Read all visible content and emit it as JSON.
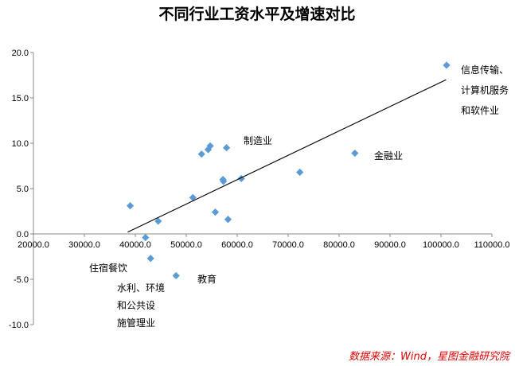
{
  "chart_data": {
    "type": "scatter",
    "title": "不同行业工资水平及增速对比",
    "xlabel": "",
    "ylabel": "",
    "xlim": [
      20000,
      110000
    ],
    "ylim": [
      -10,
      20
    ],
    "x_ticks": [
      "20000.0",
      "30000.0",
      "40000.0",
      "50000.0",
      "60000.0",
      "70000.0",
      "80000.0",
      "90000.0",
      "100000.0",
      "110000.0"
    ],
    "y_ticks": [
      "20.0",
      "15.0",
      "10.0",
      "5.0",
      "0.0",
      "-5.0",
      "-10.0"
    ],
    "marker_color": "#5b9bd5",
    "points": [
      {
        "x": 39000,
        "y": 3.1
      },
      {
        "x": 42000,
        "y": -0.4
      },
      {
        "x": 43000,
        "y": -2.7
      },
      {
        "x": 44500,
        "y": 1.4
      },
      {
        "x": 48000,
        "y": -4.6
      },
      {
        "x": 51300,
        "y": 4.0
      },
      {
        "x": 53000,
        "y": 8.8
      },
      {
        "x": 54300,
        "y": 9.3
      },
      {
        "x": 54700,
        "y": 9.7
      },
      {
        "x": 55700,
        "y": 2.4
      },
      {
        "x": 57200,
        "y": 6.0
      },
      {
        "x": 57300,
        "y": 5.8
      },
      {
        "x": 57900,
        "y": 9.5
      },
      {
        "x": 58200,
        "y": 1.6
      },
      {
        "x": 60800,
        "y": 6.1
      },
      {
        "x": 72300,
        "y": 6.8
      },
      {
        "x": 83100,
        "y": 8.9
      },
      {
        "x": 101100,
        "y": 18.6
      }
    ],
    "trendline": {
      "x": [
        38500,
        101000
      ],
      "y": [
        0.2,
        17.0
      ],
      "color": "#000000"
    },
    "annotations": [
      {
        "lines": [
          "信息传输、",
          "计算机服务",
          "和软件业"
        ]
      },
      {
        "lines": [
          "制造业"
        ]
      },
      {
        "lines": [
          "金融业"
        ]
      },
      {
        "lines": [
          "住宿餐饮"
        ]
      },
      {
        "lines": [
          "教育"
        ]
      },
      {
        "lines": [
          "水利、环境",
          "和公共设",
          "施管理业"
        ]
      }
    ],
    "source": "数据来源：Wind，星图金融研究院"
  }
}
